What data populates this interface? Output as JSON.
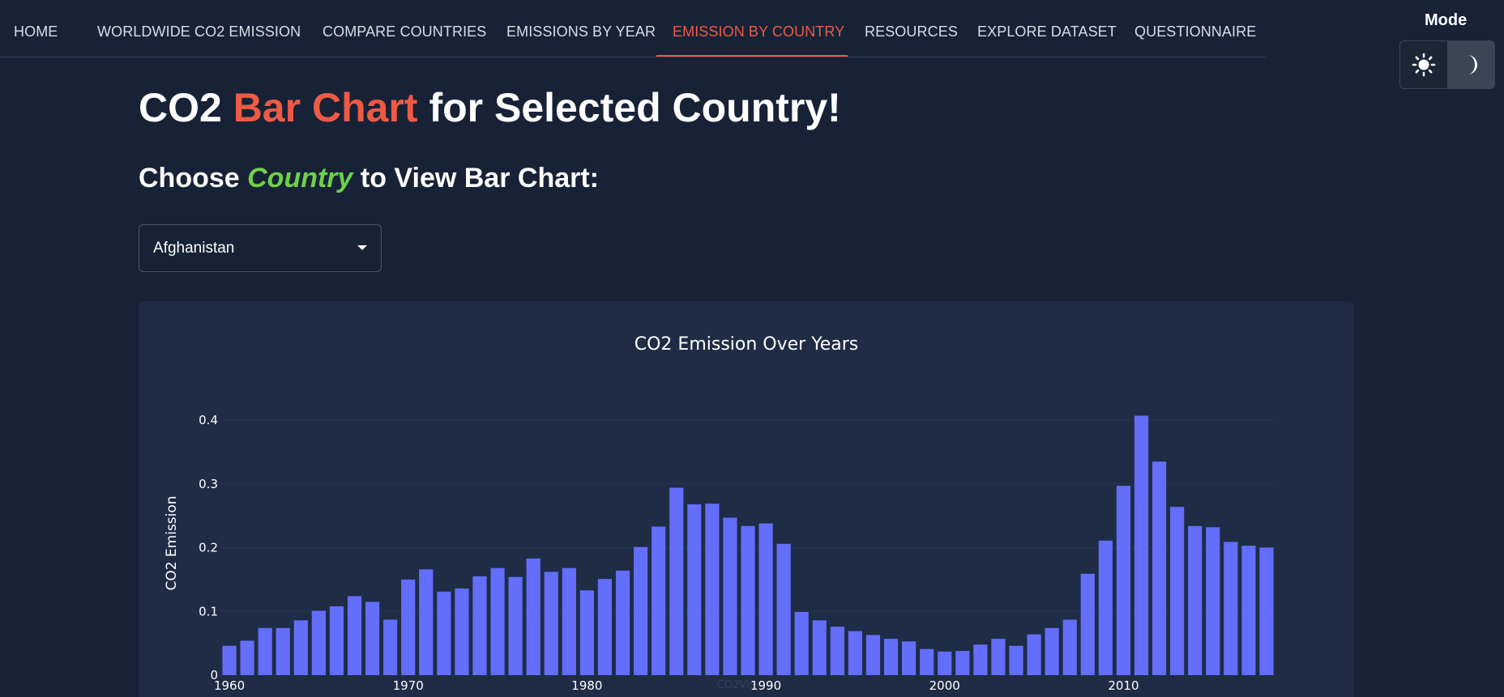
{
  "nav": {
    "items": [
      {
        "label": "HOME",
        "name": "nav-home",
        "active": false
      },
      {
        "label": "WORLDWIDE CO2 EMISSION",
        "name": "nav-worldwide-co2-emission",
        "active": false
      },
      {
        "label": "COMPARE COUNTRIES",
        "name": "nav-compare-countries",
        "active": false
      },
      {
        "label": "EMISSIONS BY YEAR",
        "name": "nav-emissions-by-year",
        "active": false
      },
      {
        "label": "EMISSION BY COUNTRY",
        "name": "nav-emission-by-country",
        "active": true
      },
      {
        "label": "RESOURCES",
        "name": "nav-resources",
        "active": false
      },
      {
        "label": "EXPLORE DATASET",
        "name": "nav-explore-dataset",
        "active": false
      },
      {
        "label": "QUESTIONNAIRE",
        "name": "nav-questionnaire",
        "active": false
      }
    ],
    "active_color": "#ef5a45"
  },
  "mode": {
    "label": "Mode",
    "light_icon": "sun-icon",
    "dark_icon": "moon-icon",
    "selected": "dark"
  },
  "heading": {
    "part1": "CO2 ",
    "highlight": "Bar Chart",
    "part2": " for Selected Country!",
    "highlight_color": "#ef5a45"
  },
  "subheading": {
    "part1": "Choose ",
    "highlight": "Country",
    "part2": " to View Bar Chart:",
    "highlight_color": "#6fd14a"
  },
  "country_select": {
    "value": "Afghanistan"
  },
  "chart_data": {
    "type": "bar",
    "title": "CO2 Emission Over Years",
    "xlabel": "",
    "ylabel": "CO2 Emission",
    "watermark": "CO2Vis",
    "bar_color": "#636efa",
    "grid": true,
    "ylim": [
      0,
      0.43
    ],
    "yticks": [
      0,
      0.1,
      0.2,
      0.3,
      0.4
    ],
    "ytick_labels": [
      "0",
      "0.1",
      "0.2",
      "0.3",
      "0.4"
    ],
    "xticks": [
      1960,
      1970,
      1980,
      1990,
      2000,
      2010
    ],
    "x": [
      1960,
      1961,
      1962,
      1963,
      1964,
      1965,
      1966,
      1967,
      1968,
      1969,
      1970,
      1971,
      1972,
      1973,
      1974,
      1975,
      1976,
      1977,
      1978,
      1979,
      1980,
      1981,
      1982,
      1983,
      1984,
      1985,
      1986,
      1987,
      1988,
      1989,
      1990,
      1991,
      1992,
      1993,
      1994,
      1995,
      1996,
      1997,
      1998,
      1999,
      2000,
      2001,
      2002,
      2003,
      2004,
      2005,
      2006,
      2007,
      2008,
      2009,
      2010,
      2011,
      2012,
      2013,
      2014,
      2015,
      2016,
      2017,
      2018
    ],
    "values": [
      0.046,
      0.054,
      0.074,
      0.074,
      0.086,
      0.101,
      0.108,
      0.124,
      0.115,
      0.087,
      0.15,
      0.166,
      0.131,
      0.136,
      0.155,
      0.168,
      0.154,
      0.183,
      0.162,
      0.168,
      0.133,
      0.151,
      0.164,
      0.201,
      0.233,
      0.294,
      0.268,
      0.269,
      0.247,
      0.234,
      0.238,
      0.206,
      0.099,
      0.086,
      0.076,
      0.069,
      0.063,
      0.057,
      0.053,
      0.041,
      0.037,
      0.038,
      0.048,
      0.057,
      0.046,
      0.064,
      0.074,
      0.087,
      0.159,
      0.211,
      0.297,
      0.407,
      0.335,
      0.264,
      0.234,
      0.232,
      0.209,
      0.203,
      0.2
    ]
  }
}
